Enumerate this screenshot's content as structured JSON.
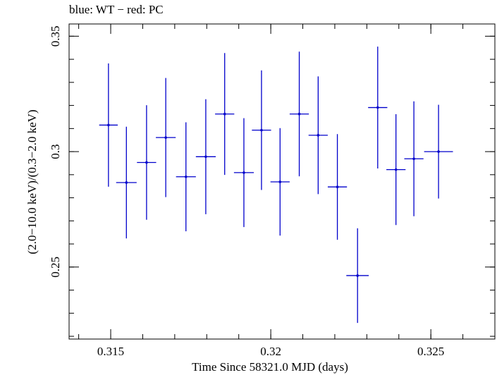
{
  "chart_data": {
    "type": "scatter",
    "title": "blue: WT − red: PC",
    "xlabel": "Time Since 58321.0 MJD (days)",
    "ylabel": "(2.0−10.0 keV)/(0.3−2.0 keV)",
    "xlim": [
      0.3137,
      0.327
    ],
    "ylim": [
      0.2188,
      0.3553
    ],
    "x_ticks": [
      {
        "value": 0.315,
        "label": "0.315"
      },
      {
        "value": 0.32,
        "label": "0.32"
      },
      {
        "value": 0.325,
        "label": "0.325"
      }
    ],
    "y_ticks": [
      {
        "value": 0.25,
        "label": "0.25"
      },
      {
        "value": 0.3,
        "label": "0.3"
      },
      {
        "value": 0.35,
        "label": "0.35"
      }
    ],
    "x_minor_step": 0.001,
    "y_minor_step": 0.01,
    "grid": false,
    "series": [
      {
        "color": "#0000cc",
        "points": [
          {
            "x": 0.31493,
            "xerr": 0.00029,
            "y": 0.3115,
            "yerr": 0.0267
          },
          {
            "x": 0.31549,
            "xerr": 0.00032,
            "y": 0.2866,
            "yerr": 0.0242
          },
          {
            "x": 0.31612,
            "xerr": 0.0003,
            "y": 0.2953,
            "yerr": 0.0248
          },
          {
            "x": 0.31672,
            "xerr": 0.00031,
            "y": 0.3061,
            "yerr": 0.0258
          },
          {
            "x": 0.31735,
            "xerr": 0.00031,
            "y": 0.2891,
            "yerr": 0.0236
          },
          {
            "x": 0.31797,
            "xerr": 0.00031,
            "y": 0.2978,
            "yerr": 0.0249
          },
          {
            "x": 0.31856,
            "xerr": 0.0003,
            "y": 0.3163,
            "yerr": 0.0264
          },
          {
            "x": 0.31916,
            "xerr": 0.00031,
            "y": 0.2909,
            "yerr": 0.0236
          },
          {
            "x": 0.31971,
            "xerr": 0.0003,
            "y": 0.3093,
            "yerr": 0.0259
          },
          {
            "x": 0.32029,
            "xerr": 0.0003,
            "y": 0.2869,
            "yerr": 0.0233
          },
          {
            "x": 0.32089,
            "xerr": 0.0003,
            "y": 0.3163,
            "yerr": 0.027
          },
          {
            "x": 0.32148,
            "xerr": 0.0003,
            "y": 0.3071,
            "yerr": 0.0255
          },
          {
            "x": 0.32208,
            "xerr": 0.0003,
            "y": 0.2847,
            "yerr": 0.0229
          },
          {
            "x": 0.32271,
            "xerr": 0.00035,
            "y": 0.2463,
            "yerr": 0.0205
          },
          {
            "x": 0.32334,
            "xerr": 0.0003,
            "y": 0.3191,
            "yerr": 0.0264
          },
          {
            "x": 0.32391,
            "xerr": 0.0003,
            "y": 0.2922,
            "yerr": 0.024
          },
          {
            "x": 0.32447,
            "xerr": 0.0003,
            "y": 0.2969,
            "yerr": 0.0249
          },
          {
            "x": 0.32524,
            "xerr": 0.00045,
            "y": 0.3,
            "yerr": 0.0203
          }
        ]
      }
    ]
  }
}
